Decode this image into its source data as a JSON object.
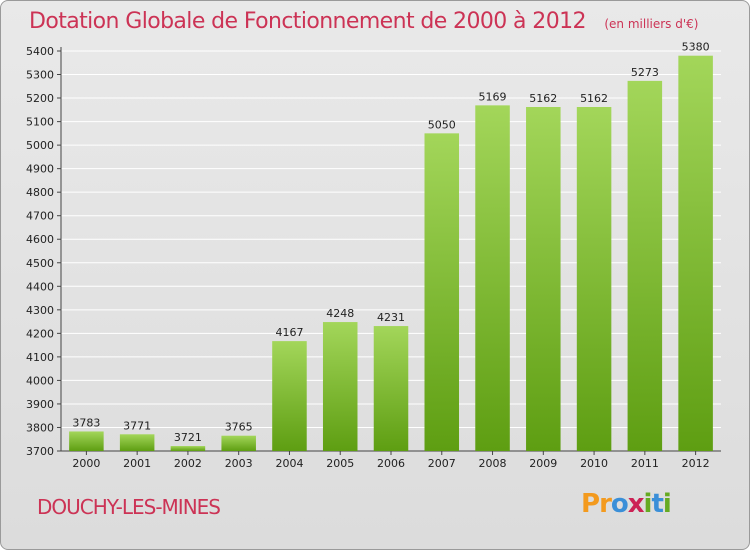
{
  "header": {
    "title": "Dotation Globale de Fonctionnement de 2000 à 2012",
    "unit": "(en milliers d'€)"
  },
  "footer": {
    "commune": "DOUCHY-LES-MINES",
    "logo": {
      "letters": [
        "P",
        "r",
        "o",
        "x",
        "i",
        "t",
        "i"
      ],
      "colors": [
        "#f39a1e",
        "#f39a1e",
        "#3a8fd8",
        "#cc2255",
        "#66aa22",
        "#3a8fd8",
        "#66aa22"
      ]
    }
  },
  "colors": {
    "bar_light": "#a3d65a",
    "bar_dark": "#5e9e12",
    "grid": "#ffffff",
    "title": "#cc3355"
  },
  "chart_data": {
    "type": "bar",
    "categories": [
      "2000",
      "2001",
      "2002",
      "2003",
      "2004",
      "2005",
      "2006",
      "2007",
      "2008",
      "2009",
      "2010",
      "2011",
      "2012"
    ],
    "values": [
      3783,
      3771,
      3721,
      3765,
      4167,
      4248,
      4231,
      5050,
      5169,
      5162,
      5162,
      5273,
      5380
    ],
    "ylim": [
      3700,
      5400
    ],
    "yticks": [
      3700,
      3800,
      3900,
      4000,
      4100,
      4200,
      4300,
      4400,
      4500,
      4600,
      4700,
      4800,
      4900,
      5000,
      5100,
      5200,
      5300,
      5400
    ],
    "grid": true,
    "title": "Dotation Globale de Fonctionnement de 2000 à 2012",
    "xlabel": "",
    "ylabel": ""
  }
}
